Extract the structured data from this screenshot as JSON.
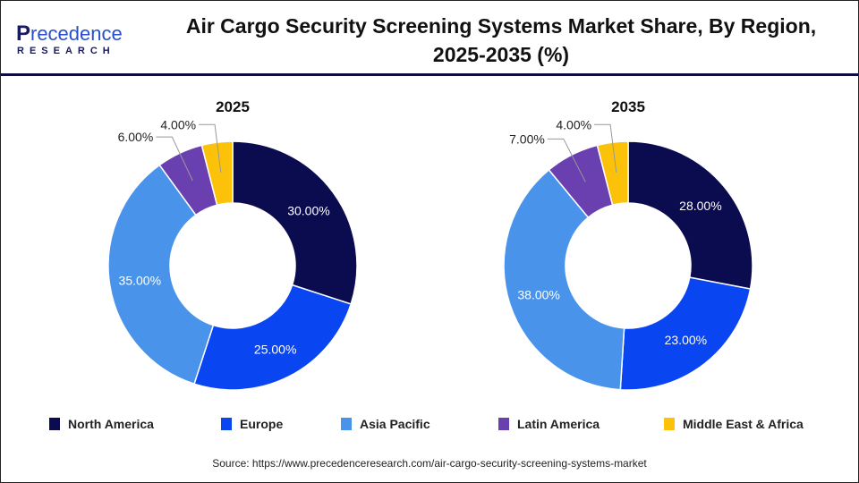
{
  "header": {
    "logo_text": "Precedence",
    "logo_subtext": "RESEARCH",
    "title": "Air Cargo Security Screening Systems Market Share, By Region, 2025-2035 (%)"
  },
  "chart_data": [
    {
      "type": "pie",
      "donut": true,
      "title": "2025",
      "categories": [
        "North America",
        "Europe",
        "Asia Pacific",
        "Latin America",
        "Middle East & Africa"
      ],
      "values": [
        30,
        25,
        35,
        6,
        4
      ],
      "labels": [
        "30.00%",
        "25.00%",
        "35.00%",
        "6.00%",
        "4.00%"
      ]
    },
    {
      "type": "pie",
      "donut": true,
      "title": "2035",
      "categories": [
        "North America",
        "Europe",
        "Asia Pacific",
        "Latin America",
        "Middle East & Africa"
      ],
      "values": [
        28,
        23,
        38,
        7,
        4
      ],
      "labels": [
        "28.00%",
        "23.00%",
        "38.00%",
        "7.00%",
        "4.00%"
      ]
    }
  ],
  "legend": [
    {
      "label": "North America",
      "color": "#0b0b4f"
    },
    {
      "label": "Europe",
      "color": "#0a45f2"
    },
    {
      "label": "Asia Pacific",
      "color": "#4a93ea"
    },
    {
      "label": "Latin America",
      "color": "#6a3fb0"
    },
    {
      "label": "Middle East & Africa",
      "color": "#fcc20a"
    }
  ],
  "source": "Source: https://www.precedenceresearch.com/air-cargo-security-screening-systems-market"
}
